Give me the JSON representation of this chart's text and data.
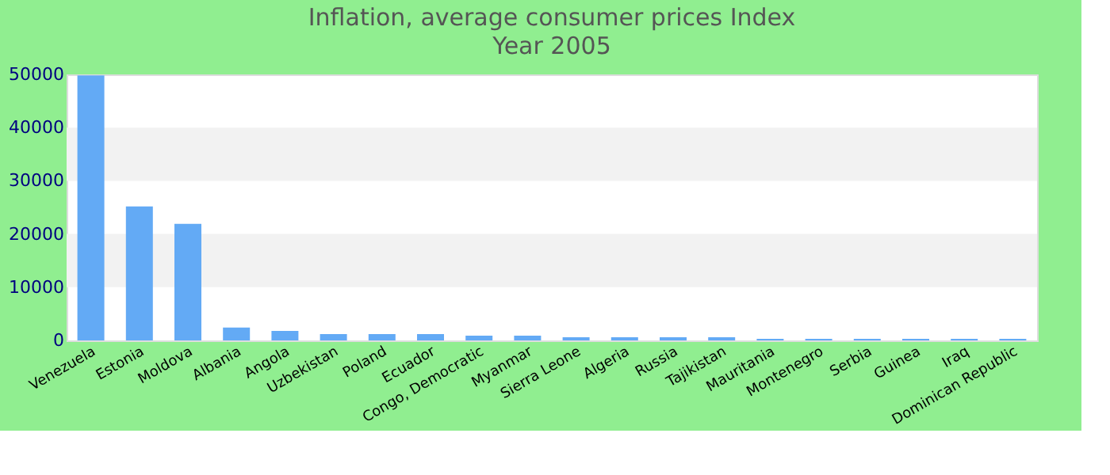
{
  "chart_data": {
    "type": "bar",
    "title": "Inflation, average consumer prices  Index",
    "subtitle": "Year 2005",
    "categories": [
      "Venezuela",
      "Estonia",
      "Moldova",
      "Albania",
      "Angola",
      "Uzbekistan",
      "Poland",
      "Ecuador",
      "Congo, Democratic",
      "Myanmar",
      "Sierra Leone",
      "Algeria",
      "Russia",
      "Tajikistan",
      "Mauritania",
      "Montenegro",
      "Serbia",
      "Guinea",
      "Iraq",
      "Dominican Republic"
    ],
    "values": [
      49800,
      25200,
      21900,
      2400,
      1800,
      1200,
      1200,
      1200,
      900,
      900,
      600,
      600,
      600,
      600,
      300,
      300,
      300,
      300,
      300,
      300
    ],
    "color": "#63aaf5",
    "ylim": [
      0,
      50000
    ],
    "yticks": [
      0,
      10000,
      20000,
      30000,
      40000,
      50000
    ],
    "bands": [
      {
        "axis": "y",
        "from": 10000,
        "to": 20000,
        "color": "#f2f2f2"
      },
      {
        "axis": "y",
        "from": 30000,
        "to": 40000,
        "color": "#f2f2f2"
      }
    ],
    "grid": false
  }
}
